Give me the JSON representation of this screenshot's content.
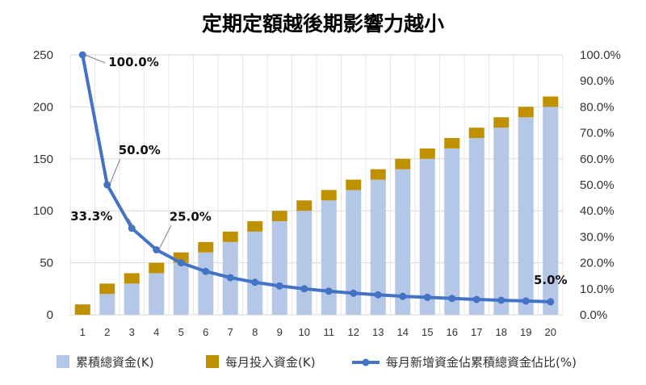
{
  "chart_data": {
    "type": "bar",
    "title": "定期定額越後期影響力越小",
    "categories": [
      "1",
      "2",
      "3",
      "4",
      "5",
      "6",
      "7",
      "8",
      "9",
      "10",
      "11",
      "12",
      "13",
      "14",
      "15",
      "16",
      "17",
      "18",
      "19",
      "20"
    ],
    "series": [
      {
        "name": "累積總資金(K)",
        "kind": "stacked-bar",
        "color": "#b4c7e7",
        "values": [
          0,
          20,
          30,
          40,
          50,
          60,
          70,
          80,
          90,
          100,
          110,
          120,
          130,
          140,
          150,
          160,
          170,
          180,
          190,
          200
        ]
      },
      {
        "name": "每月投入資金(K)",
        "kind": "stacked-bar",
        "color": "#bf9000",
        "values": [
          10,
          10,
          10,
          10,
          10,
          10,
          10,
          10,
          10,
          10,
          10,
          10,
          10,
          10,
          10,
          10,
          10,
          10,
          10,
          10
        ]
      },
      {
        "name": "每月新增資金佔累積總資金佔比(%)",
        "kind": "line",
        "axis": "right",
        "color": "#4472c4",
        "values": [
          100.0,
          50.0,
          33.3,
          25.0,
          20.0,
          16.7,
          14.3,
          12.5,
          11.1,
          10.0,
          9.1,
          8.3,
          7.7,
          7.1,
          6.7,
          6.3,
          5.9,
          5.6,
          5.3,
          5.0
        ]
      }
    ],
    "annotations": [
      {
        "point": 1,
        "text": "100.0%"
      },
      {
        "point": 2,
        "text": "50.0%"
      },
      {
        "point": 3,
        "text": "33.3%"
      },
      {
        "point": 4,
        "text": "25.0%"
      },
      {
        "point": 20,
        "text": "5.0%"
      }
    ],
    "y_left": {
      "min": 0,
      "max": 250,
      "ticks": [
        "0",
        "50",
        "100",
        "150",
        "200",
        "250"
      ]
    },
    "y_right": {
      "min": 0,
      "max": 100,
      "ticks": [
        "0.0%",
        "10.0%",
        "20.0%",
        "30.0%",
        "40.0%",
        "50.0%",
        "60.0%",
        "70.0%",
        "80.0%",
        "90.0%",
        "100.0%"
      ]
    },
    "grid": true,
    "legend_position": "bottom"
  }
}
